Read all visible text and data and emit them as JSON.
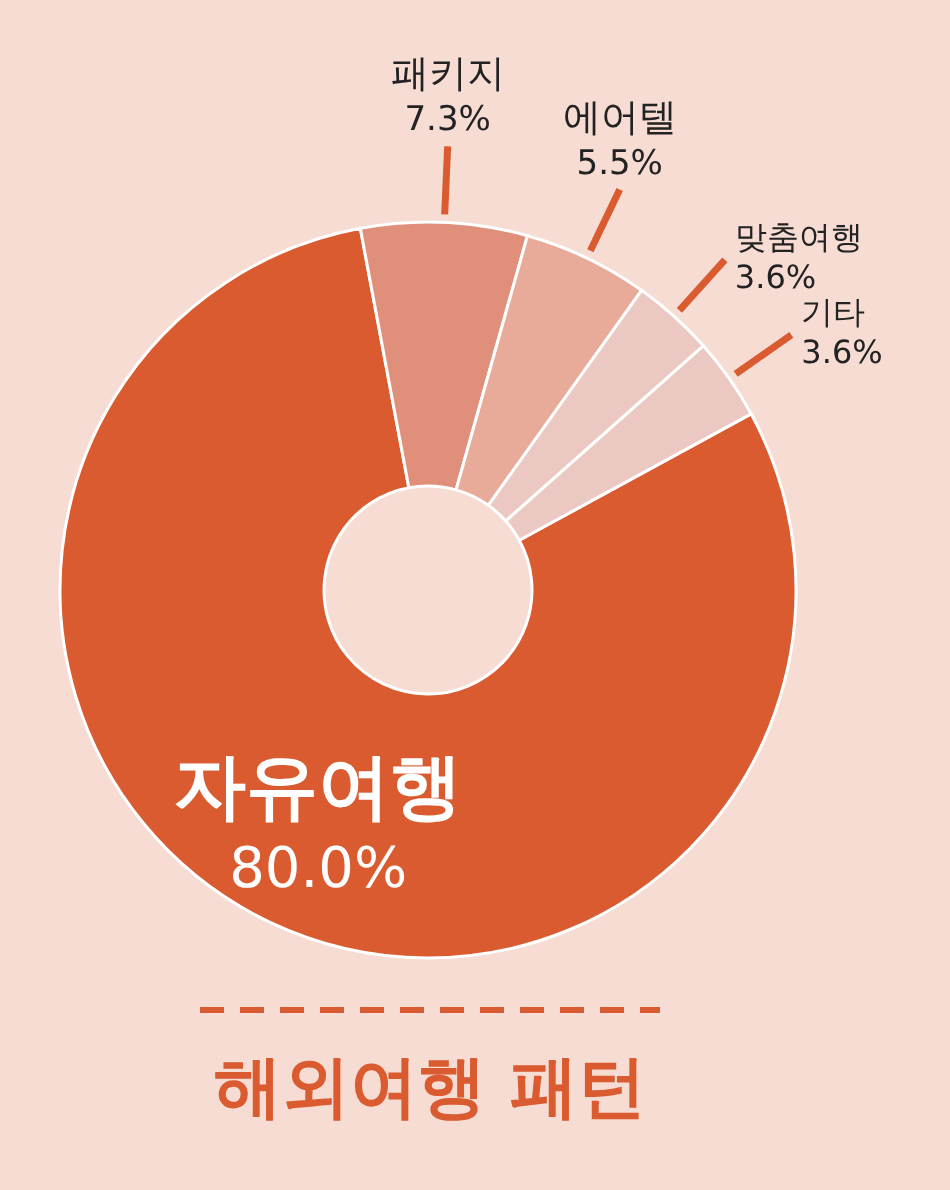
{
  "chart_data": {
    "type": "donut",
    "title": "해외여행 패턴",
    "categories": [
      "자유여행",
      "패키지",
      "에어텔",
      "맞춤여행",
      "기타"
    ],
    "values": [
      80.0,
      7.3,
      5.5,
      3.6,
      3.6
    ],
    "value_labels": [
      "80.0%",
      "7.3%",
      "5.5%",
      "3.6%",
      "3.6%"
    ],
    "colors": [
      "#d95b2f",
      "#e0907a",
      "#e8ab99",
      "#ebc8c2",
      "#ebc8c2"
    ]
  }
}
